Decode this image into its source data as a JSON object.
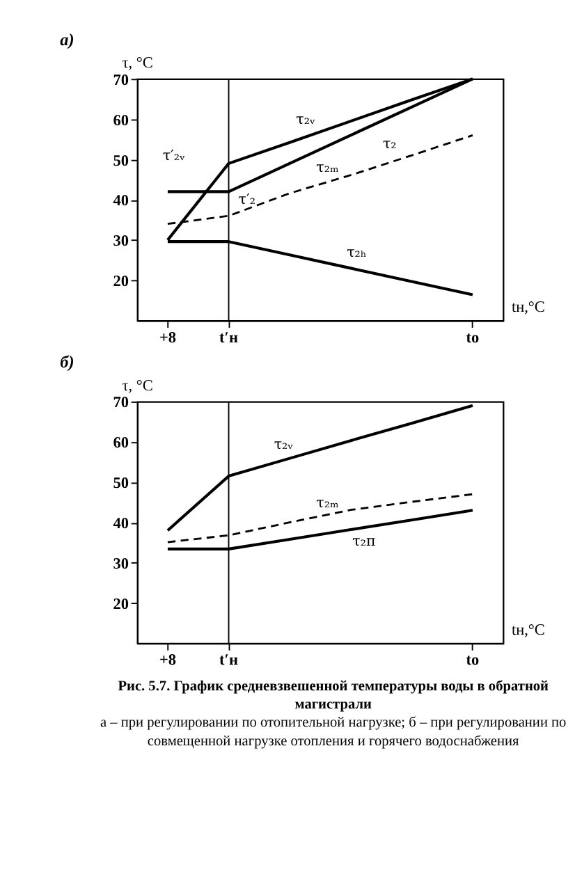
{
  "chart_data": [
    {
      "type": "line",
      "title": "а)",
      "ylabel": "τ, °C",
      "xlabel": "tн,°C",
      "ylim": [
        10,
        70
      ],
      "categories": [
        "+8",
        "t′н",
        null,
        null,
        null,
        "tо"
      ],
      "yticks": [
        20,
        30,
        40,
        50,
        60,
        70
      ],
      "grid": false,
      "marker": "none",
      "ref_lines": [
        {
          "axis": "x",
          "value": "t′н",
          "color": "#000000"
        }
      ],
      "series": [
        {
          "values": [
            30,
            49,
            54.2,
            59.5,
            64.8,
            70
          ],
          "color": "#000000",
          "line_style": "solid"
        },
        {
          "values": [
            42,
            42,
            49,
            56,
            63,
            70
          ],
          "color": "#000000",
          "line_style": "solid"
        },
        {
          "values": [
            34,
            36,
            41.6,
            46.1,
            51,
            56
          ],
          "color": "#000000",
          "line_style": "dashed"
        },
        {
          "values": [
            29.6,
            29.6,
            26.3,
            23,
            19.7,
            16.4
          ],
          "color": "#000000",
          "line_style": "solid"
        }
      ],
      "annotations": [
        "τ₂ᵥ",
        "τ₂",
        "τ′₂ᵥ",
        "τ′₂",
        "τ₂ₘ",
        "τ₂ₕ"
      ]
    },
    {
      "type": "line",
      "title": "б)",
      "ylabel": "τ, °C",
      "xlabel": "tн,°C",
      "ylim": [
        10,
        70
      ],
      "categories": [
        "+8",
        "t′н",
        null,
        null,
        null,
        "tо"
      ],
      "yticks": [
        20,
        30,
        40,
        50,
        60,
        70
      ],
      "grid": false,
      "marker": "none",
      "ref_lines": [
        {
          "axis": "x",
          "value": "t′н",
          "color": "#000000"
        }
      ],
      "series": [
        {
          "values": [
            38,
            51.5,
            55.9,
            60.3,
            64.6,
            69
          ],
          "color": "#000000",
          "line_style": "solid"
        },
        {
          "values": [
            35.1,
            36.8,
            40,
            43.1,
            45.1,
            47
          ],
          "color": "#000000",
          "line_style": "dashed"
        },
        {
          "values": [
            33.4,
            33.4,
            35.8,
            38.2,
            40.6,
            43
          ],
          "color": "#000000",
          "line_style": "solid"
        }
      ],
      "annotations": [
        "τ₂ᵥ",
        "τ₂ₘ",
        "τ₂п",
        "Рис. 5.7. График средневзвешенной температуры воды в обратной магистрали",
        "а – при регулировании по отопительной нагрузке; б – при регулировании по совмещенной нагрузке отопления и горячего водоснабжения"
      ]
    }
  ]
}
